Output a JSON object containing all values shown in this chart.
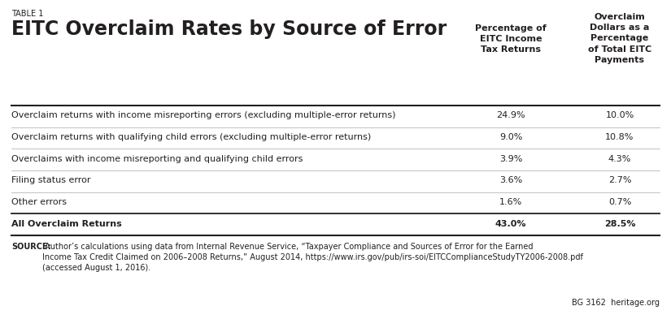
{
  "table_label": "TABLE 1",
  "title": "EITC Overclaim Rates by Source of Error",
  "col1_header": "Percentage of\nEITC Income\nTax Returns",
  "col2_header": "Overclaim\nDollars as a\nPercentage\nof Total EITC\nPayments",
  "rows": [
    {
      "label": "Overclaim returns with income misreporting errors (excluding multiple-error returns)",
      "col1": "24.9%",
      "col2": "10.0%",
      "bold": false
    },
    {
      "label": "Overclaim returns with qualifying child errors (excluding multiple-error returns)",
      "col1": "9.0%",
      "col2": "10.8%",
      "bold": false
    },
    {
      "label": "Overclaims with income misreporting and qualifying child errors",
      "col1": "3.9%",
      "col2": "4.3%",
      "bold": false
    },
    {
      "label": "Filing status error",
      "col1": "3.6%",
      "col2": "2.7%",
      "bold": false
    },
    {
      "label": "Other errors",
      "col1": "1.6%",
      "col2": "0.7%",
      "bold": false
    },
    {
      "label": "All Overclaim Returns",
      "col1": "43.0%",
      "col2": "28.5%",
      "bold": true
    }
  ],
  "source_bold_prefix": "SOURCE:",
  "source_rest": " Author’s calculations using data from Internal Revenue Service, “Taxpayer Compliance and Sources of Error for the Earned\nIncome Tax Credit Claimed on 2006–2008 Returns,” August 2014, https://www.irs.gov/pub/irs-soi/EITCComplianceStudyTY2006-2008.pdf\n(accessed August 1, 2016).",
  "footer_text": "BG 3162  heritage.org",
  "bg_color": "#ffffff",
  "line_color": "#231f20",
  "text_color": "#231f20",
  "sep_color": "#aaaaaa",
  "title_fontsize": 17,
  "label_fontsize": 7,
  "header_fontsize": 8,
  "body_fontsize": 8,
  "source_fontsize": 7,
  "footer_fontsize": 7
}
